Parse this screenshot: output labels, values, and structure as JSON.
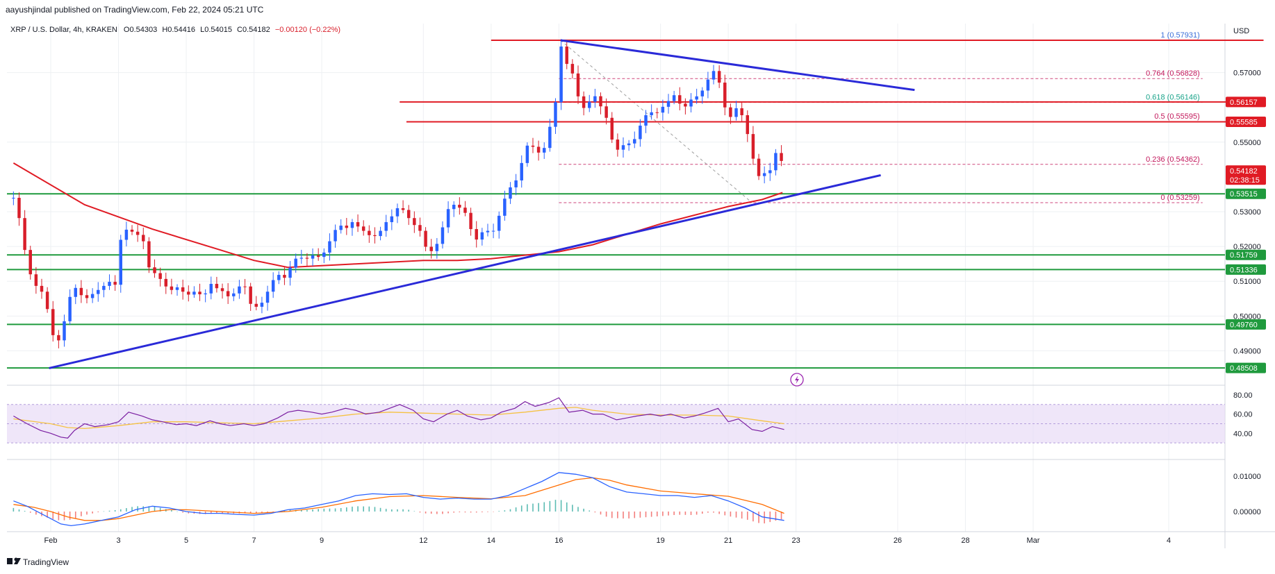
{
  "publisher": "aayushjindal published on TradingView.com, Feb 22, 2024 05:21 UTC",
  "header": {
    "symbol": "XRP / U.S. Dollar, 4h, KRAKEN",
    "open": "O0.54303",
    "high": "H0.54416",
    "low": "L0.54015",
    "close": "C0.54182",
    "change": "−0.00120 (−0.22%)"
  },
  "currency": "USD",
  "brand": "TradingView",
  "colors": {
    "up": "#2962ff",
    "down": "#d81e2a",
    "resistance": "#e01b24",
    "support": "#1f9a3d",
    "trendline": "#2a2ad8",
    "ma": "#e01b24",
    "rsi": "#7b1fa2",
    "rsi_ma": "#f5c242",
    "rsi_band": "#e8dcf7",
    "macd": "#2962ff",
    "signal": "#ff6d00",
    "hist_up": "#26a69a",
    "hist_down": "#ef5350"
  },
  "chart_data": {
    "type": "candlestick",
    "title": "XRP / U.S. Dollar, 4h, KRAKEN",
    "ylim": [
      0.4825,
      0.5805
    ],
    "y_ticks": [
      0.49,
      0.5,
      0.51,
      0.52,
      0.53,
      0.55,
      0.57
    ],
    "y_tick_labels": [
      "0.49000",
      "0.50000",
      "0.51000",
      "0.52000",
      "0.53000",
      "0.55000",
      "0.57000"
    ],
    "x_tick_labels": [
      {
        "label": "Feb",
        "day": 1
      },
      {
        "label": "3",
        "day": 3
      },
      {
        "label": "5",
        "day": 5
      },
      {
        "label": "7",
        "day": 7
      },
      {
        "label": "9",
        "day": 9
      },
      {
        "label": "12",
        "day": 12
      },
      {
        "label": "14",
        "day": 14
      },
      {
        "label": "16",
        "day": 16
      },
      {
        "label": "19",
        "day": 19
      },
      {
        "label": "21",
        "day": 21
      },
      {
        "label": "23",
        "day": 23
      },
      {
        "label": "26",
        "day": 26
      },
      {
        "label": "28",
        "day": 28
      },
      {
        "label": "Mar",
        "day": 30
      },
      {
        "label": "4",
        "day": 34
      }
    ],
    "last_price": {
      "value": 0.54182,
      "label": "0.54182",
      "countdown": "02:38:15"
    },
    "close_path": [
      [
        -0.1,
        0.534
      ],
      [
        0.1,
        0.527
      ],
      [
        0.3,
        0.515
      ],
      [
        0.5,
        0.509
      ],
      [
        0.7,
        0.508
      ],
      [
        0.9,
        0.502
      ],
      [
        1.1,
        0.493
      ],
      [
        1.3,
        0.493
      ],
      [
        1.5,
        0.504
      ],
      [
        1.7,
        0.5085
      ],
      [
        1.9,
        0.506
      ],
      [
        2.1,
        0.505
      ],
      [
        2.3,
        0.507
      ],
      [
        2.5,
        0.508
      ],
      [
        2.7,
        0.51
      ],
      [
        2.9,
        0.509
      ],
      [
        3.1,
        0.5245
      ],
      [
        3.3,
        0.525
      ],
      [
        3.5,
        0.5235
      ],
      [
        3.7,
        0.523
      ],
      [
        3.9,
        0.514
      ],
      [
        4.1,
        0.512
      ],
      [
        4.3,
        0.51
      ],
      [
        4.5,
        0.507
      ],
      [
        4.7,
        0.5085
      ],
      [
        4.9,
        0.507
      ],
      [
        5.1,
        0.506
      ],
      [
        5.3,
        0.5075
      ],
      [
        5.5,
        0.505
      ],
      [
        5.7,
        0.5095
      ],
      [
        5.9,
        0.508
      ],
      [
        6.1,
        0.507
      ],
      [
        6.3,
        0.505
      ],
      [
        6.5,
        0.508
      ],
      [
        6.7,
        0.5095
      ],
      [
        6.9,
        0.5035
      ],
      [
        7.1,
        0.5025
      ],
      [
        7.3,
        0.5045
      ],
      [
        7.5,
        0.5095
      ],
      [
        7.7,
        0.512
      ],
      [
        7.9,
        0.511
      ],
      [
        8.1,
        0.5145
      ],
      [
        8.3,
        0.5175
      ],
      [
        8.5,
        0.516
      ],
      [
        8.7,
        0.5175
      ],
      [
        8.9,
        0.517
      ],
      [
        9.1,
        0.5185
      ],
      [
        9.3,
        0.523
      ],
      [
        9.5,
        0.5265
      ],
      [
        9.7,
        0.525
      ],
      [
        9.9,
        0.527
      ],
      [
        10.1,
        0.5255
      ],
      [
        10.3,
        0.524
      ],
      [
        10.5,
        0.5225
      ],
      [
        10.7,
        0.524
      ],
      [
        10.9,
        0.527
      ],
      [
        11.1,
        0.529
      ],
      [
        11.3,
        0.532
      ],
      [
        11.5,
        0.529
      ],
      [
        11.7,
        0.5265
      ],
      [
        11.9,
        0.5245
      ],
      [
        12.1,
        0.519
      ],
      [
        12.3,
        0.5185
      ],
      [
        12.5,
        0.523
      ],
      [
        12.7,
        0.5305
      ],
      [
        12.9,
        0.532
      ],
      [
        13.1,
        0.531
      ],
      [
        13.3,
        0.529
      ],
      [
        13.5,
        0.521
      ],
      [
        13.7,
        0.524
      ],
      [
        13.9,
        0.5245
      ],
      [
        14.1,
        0.5245
      ],
      [
        14.3,
        0.531
      ],
      [
        14.5,
        0.5365
      ],
      [
        14.7,
        0.538
      ],
      [
        14.9,
        0.544
      ],
      [
        15.1,
        0.55
      ],
      [
        15.3,
        0.548
      ],
      [
        15.5,
        0.546
      ],
      [
        15.7,
        0.553
      ],
      [
        15.9,
        0.5615
      ],
      [
        16.05,
        0.578
      ],
      [
        16.25,
        0.572
      ],
      [
        16.45,
        0.569
      ],
      [
        16.65,
        0.559
      ],
      [
        16.85,
        0.561
      ],
      [
        17.05,
        0.5635
      ],
      [
        17.25,
        0.56
      ],
      [
        17.45,
        0.556
      ],
      [
        17.65,
        0.547
      ],
      [
        17.85,
        0.549
      ],
      [
        18.05,
        0.5495
      ],
      [
        18.25,
        0.551
      ],
      [
        18.45,
        0.556
      ],
      [
        18.65,
        0.559
      ],
      [
        18.85,
        0.558
      ],
      [
        19.05,
        0.56
      ],
      [
        19.25,
        0.562
      ],
      [
        19.45,
        0.564
      ],
      [
        19.65,
        0.559
      ],
      [
        19.85,
        0.562
      ],
      [
        20.05,
        0.563
      ],
      [
        20.25,
        0.565
      ],
      [
        20.45,
        0.569
      ],
      [
        20.65,
        0.5715
      ],
      [
        20.85,
        0.561
      ],
      [
        21.05,
        0.557
      ],
      [
        21.25,
        0.56
      ],
      [
        21.45,
        0.557
      ],
      [
        21.65,
        0.549
      ],
      [
        21.85,
        0.54
      ],
      [
        22.05,
        0.541
      ],
      [
        22.25,
        0.542
      ],
      [
        22.45,
        0.5485
      ],
      [
        22.65,
        0.5418
      ]
    ],
    "ma_line": [
      [
        -0.1,
        0.544
      ],
      [
        2.0,
        0.532
      ],
      [
        4.0,
        0.525
      ],
      [
        6.0,
        0.519
      ],
      [
        7.0,
        0.516
      ],
      [
        8.0,
        0.514
      ],
      [
        9.0,
        0.5145
      ],
      [
        10.0,
        0.515
      ],
      [
        11.0,
        0.5155
      ],
      [
        12.0,
        0.516
      ],
      [
        13.0,
        0.516
      ],
      [
        14.0,
        0.5165
      ],
      [
        15.0,
        0.5175
      ],
      [
        16.0,
        0.5185
      ],
      [
        17.0,
        0.5205
      ],
      [
        18.0,
        0.5235
      ],
      [
        19.0,
        0.5265
      ],
      [
        20.0,
        0.529
      ],
      [
        21.0,
        0.5315
      ],
      [
        22.0,
        0.5335
      ],
      [
        22.6,
        0.5355
      ]
    ],
    "resistance_lines": [
      {
        "value": 0.57931,
        "from_day": 14.0,
        "to_day": 36.8
      },
      {
        "value": 0.56157,
        "label": "0.56157",
        "from_day": 11.3,
        "to_day": 36.8
      },
      {
        "value": 0.55585,
        "label": "0.55585",
        "from_day": 11.5,
        "to_day": 36.8
      }
    ],
    "support_lines": [
      {
        "value": 0.53515,
        "label": "0.53515"
      },
      {
        "value": 0.51759,
        "label": "0.51759"
      },
      {
        "value": 0.51336,
        "label": "0.51336"
      },
      {
        "value": 0.4976,
        "label": "0.49760"
      },
      {
        "value": 0.48508,
        "label": "0.48508"
      }
    ],
    "trendlines": [
      {
        "from": [
          0.95,
          0.485
        ],
        "to": [
          25.5,
          0.5405
        ]
      },
      {
        "from": [
          16.05,
          0.5793
        ],
        "to": [
          26.5,
          0.565
        ]
      }
    ],
    "fib_levels": [
      {
        "ratio": "1",
        "value": 0.57931,
        "label": "(0.57931)"
      },
      {
        "ratio": "0.764",
        "value": 0.56828,
        "label": "(0.56828)"
      },
      {
        "ratio": "0.618",
        "value": 0.56146,
        "label": "(0.56146)"
      },
      {
        "ratio": "0.5",
        "value": 0.55595,
        "label": "(0.55595)"
      },
      {
        "ratio": "0.236",
        "value": 0.54362,
        "label": "(0.54362)"
      },
      {
        "ratio": "0",
        "value": 0.53259,
        "label": "(0.53259)"
      }
    ],
    "fib_range_days": [
      16.0,
      35.0
    ],
    "fib_diagonal": {
      "from": [
        16.05,
        0.5793
      ],
      "to": [
        21.7,
        0.5326
      ]
    },
    "rsi": {
      "ylim": [
        20,
        85
      ],
      "ticks": [
        40,
        60,
        80
      ],
      "tick_labels": [
        "40.00",
        "60.00",
        "80.00"
      ],
      "band": [
        30,
        70
      ],
      "midline": 50,
      "values": [
        [
          -0.1,
          58
        ],
        [
          0.3,
          50
        ],
        [
          0.7,
          43
        ],
        [
          1.0,
          40
        ],
        [
          1.3,
          36
        ],
        [
          1.5,
          35
        ],
        [
          1.7,
          43
        ],
        [
          2.0,
          50
        ],
        [
          2.3,
          47
        ],
        [
          2.7,
          49
        ],
        [
          3.0,
          52
        ],
        [
          3.3,
          62
        ],
        [
          3.7,
          58
        ],
        [
          4.0,
          54
        ],
        [
          4.3,
          52
        ],
        [
          4.7,
          49
        ],
        [
          5.0,
          50
        ],
        [
          5.3,
          48
        ],
        [
          5.7,
          53
        ],
        [
          6.0,
          50
        ],
        [
          6.3,
          48
        ],
        [
          6.7,
          50
        ],
        [
          7.0,
          48
        ],
        [
          7.3,
          50
        ],
        [
          7.7,
          56
        ],
        [
          8.0,
          62
        ],
        [
          8.3,
          64
        ],
        [
          8.7,
          62
        ],
        [
          9.0,
          60
        ],
        [
          9.3,
          62
        ],
        [
          9.7,
          66
        ],
        [
          10.0,
          64
        ],
        [
          10.3,
          60
        ],
        [
          10.7,
          62
        ],
        [
          11.0,
          66
        ],
        [
          11.3,
          70
        ],
        [
          11.7,
          64
        ],
        [
          12.0,
          55
        ],
        [
          12.3,
          52
        ],
        [
          12.7,
          60
        ],
        [
          13.0,
          64
        ],
        [
          13.3,
          58
        ],
        [
          13.7,
          54
        ],
        [
          14.0,
          56
        ],
        [
          14.3,
          62
        ],
        [
          14.7,
          66
        ],
        [
          15.0,
          73
        ],
        [
          15.3,
          68
        ],
        [
          15.7,
          72
        ],
        [
          16.0,
          77
        ],
        [
          16.3,
          62
        ],
        [
          16.7,
          64
        ],
        [
          17.0,
          60
        ],
        [
          17.3,
          60
        ],
        [
          17.7,
          54
        ],
        [
          18.0,
          56
        ],
        [
          18.3,
          58
        ],
        [
          18.7,
          60
        ],
        [
          19.0,
          58
        ],
        [
          19.3,
          60
        ],
        [
          19.7,
          56
        ],
        [
          20.0,
          58
        ],
        [
          20.3,
          61
        ],
        [
          20.7,
          66
        ],
        [
          21.0,
          52
        ],
        [
          21.3,
          55
        ],
        [
          21.7,
          44
        ],
        [
          22.0,
          42
        ],
        [
          22.3,
          47
        ],
        [
          22.65,
          44
        ]
      ],
      "ma_values": [
        [
          -0.1,
          55
        ],
        [
          1.0,
          50
        ],
        [
          1.5,
          46
        ],
        [
          2.0,
          45
        ],
        [
          3.0,
          48
        ],
        [
          4.0,
          52
        ],
        [
          5.0,
          52
        ],
        [
          6.0,
          51
        ],
        [
          7.0,
          50
        ],
        [
          8.0,
          53
        ],
        [
          9.0,
          56
        ],
        [
          10.0,
          60
        ],
        [
          11.0,
          62
        ],
        [
          12.0,
          61
        ],
        [
          13.0,
          60
        ],
        [
          14.0,
          59
        ],
        [
          15.0,
          62
        ],
        [
          16.0,
          66
        ],
        [
          16.5,
          67
        ],
        [
          17.0,
          64
        ],
        [
          18.0,
          60
        ],
        [
          19.0,
          59
        ],
        [
          20.0,
          59
        ],
        [
          21.0,
          58
        ],
        [
          22.0,
          53
        ],
        [
          22.65,
          50
        ]
      ]
    },
    "macd": {
      "ylim": [
        -0.0045,
        0.0135
      ],
      "ticks": [
        0.0,
        0.01
      ],
      "tick_labels": [
        "0.00000",
        "0.01000"
      ],
      "macd_values": [
        [
          -0.1,
          0.003
        ],
        [
          0.3,
          0.0015
        ],
        [
          0.7,
          -0.0005
        ],
        [
          1.0,
          -0.002
        ],
        [
          1.3,
          -0.0035
        ],
        [
          1.6,
          -0.004
        ],
        [
          2.0,
          -0.0035
        ],
        [
          2.5,
          -0.0025
        ],
        [
          3.0,
          -0.0015
        ],
        [
          3.5,
          0.0005
        ],
        [
          4.0,
          0.0015
        ],
        [
          4.5,
          0.001
        ],
        [
          5.0,
          0.0
        ],
        [
          5.5,
          -0.0005
        ],
        [
          6.0,
          -0.0005
        ],
        [
          6.5,
          -0.0008
        ],
        [
          7.0,
          -0.001
        ],
        [
          7.5,
          -0.0005
        ],
        [
          8.0,
          0.0005
        ],
        [
          8.5,
          0.001
        ],
        [
          9.0,
          0.002
        ],
        [
          9.5,
          0.003
        ],
        [
          10.0,
          0.0045
        ],
        [
          10.5,
          0.005
        ],
        [
          11.0,
          0.0048
        ],
        [
          11.5,
          0.005
        ],
        [
          12.0,
          0.004
        ],
        [
          12.5,
          0.0035
        ],
        [
          13.0,
          0.0038
        ],
        [
          13.5,
          0.0035
        ],
        [
          14.0,
          0.0035
        ],
        [
          14.5,
          0.0045
        ],
        [
          15.0,
          0.0065
        ],
        [
          15.5,
          0.0085
        ],
        [
          16.0,
          0.011
        ],
        [
          16.5,
          0.0105
        ],
        [
          17.0,
          0.0095
        ],
        [
          17.5,
          0.007
        ],
        [
          18.0,
          0.0055
        ],
        [
          18.5,
          0.005
        ],
        [
          19.0,
          0.0045
        ],
        [
          19.5,
          0.0045
        ],
        [
          20.0,
          0.004
        ],
        [
          20.5,
          0.0045
        ],
        [
          21.0,
          0.003
        ],
        [
          21.5,
          0.001
        ],
        [
          22.0,
          -0.0015
        ],
        [
          22.65,
          -0.0025
        ]
      ],
      "signal_values": [
        [
          -0.1,
          0.002
        ],
        [
          0.5,
          0.0012
        ],
        [
          1.0,
          0.0
        ],
        [
          1.5,
          -0.0015
        ],
        [
          2.0,
          -0.0025
        ],
        [
          2.5,
          -0.0025
        ],
        [
          3.0,
          -0.002
        ],
        [
          3.5,
          -0.001
        ],
        [
          4.0,
          0.0
        ],
        [
          4.5,
          0.0005
        ],
        [
          5.0,
          0.0005
        ],
        [
          6.0,
          0.0
        ],
        [
          7.0,
          -0.0005
        ],
        [
          8.0,
          0.0
        ],
        [
          9.0,
          0.0012
        ],
        [
          10.0,
          0.003
        ],
        [
          11.0,
          0.0042
        ],
        [
          12.0,
          0.0045
        ],
        [
          13.0,
          0.004
        ],
        [
          14.0,
          0.0036
        ],
        [
          15.0,
          0.0045
        ],
        [
          16.0,
          0.0075
        ],
        [
          16.5,
          0.009
        ],
        [
          17.0,
          0.0095
        ],
        [
          17.5,
          0.0088
        ],
        [
          18.0,
          0.0075
        ],
        [
          19.0,
          0.0058
        ],
        [
          20.0,
          0.005
        ],
        [
          21.0,
          0.0043
        ],
        [
          22.0,
          0.002
        ],
        [
          22.65,
          -0.0005
        ]
      ]
    }
  }
}
